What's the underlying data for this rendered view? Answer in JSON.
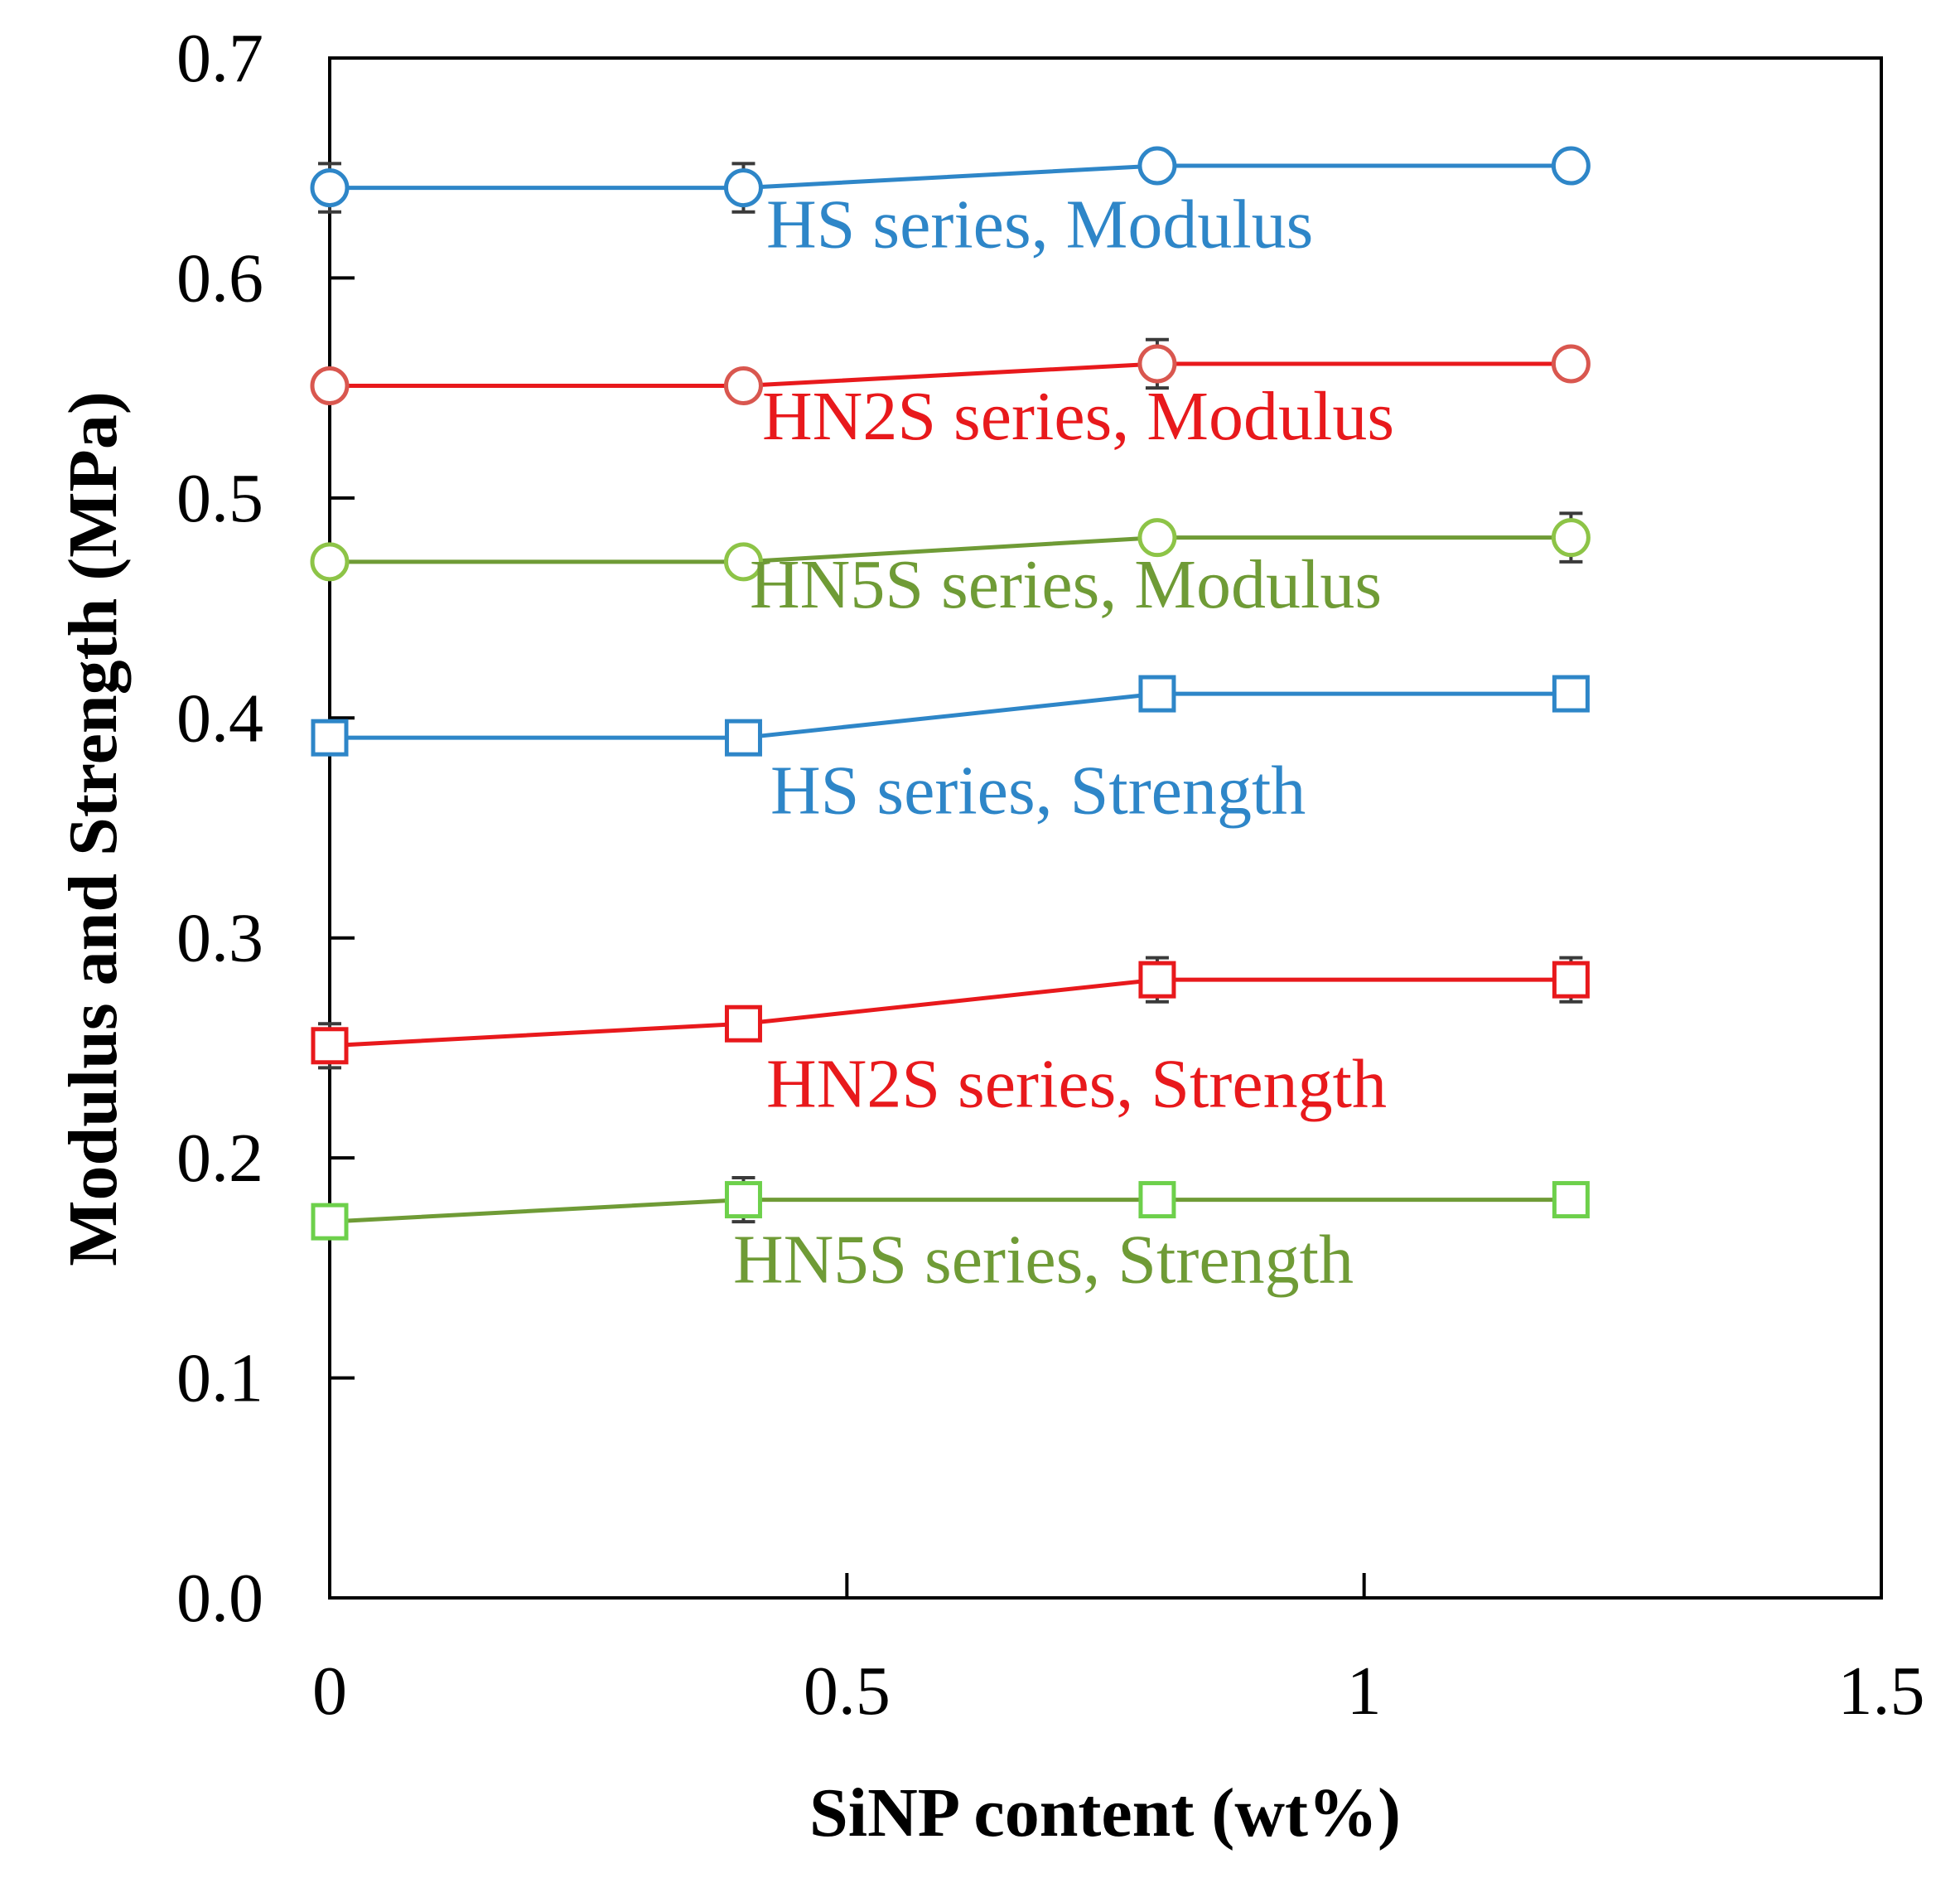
{
  "chart_data": {
    "type": "line",
    "xlabel": "SiNP content (wt%)",
    "ylabel": "Modulus and Strength (MPa)",
    "xlim": [
      0,
      1.5
    ],
    "ylim": [
      0,
      0.7
    ],
    "x_ticks": [
      "0",
      "0.5",
      "1",
      "1.5"
    ],
    "y_ticks": [
      "0.0",
      "0.1",
      "0.2",
      "0.3",
      "0.4",
      "0.5",
      "0.6",
      "0.7"
    ],
    "x_tick_values": [
      0,
      0.5,
      1,
      1.5
    ],
    "y_tick_values": [
      0,
      0.1,
      0.2,
      0.3,
      0.4,
      0.5,
      0.6,
      0.7
    ],
    "grid": false,
    "series": [
      {
        "name": "HS series, Modulus",
        "label": "HS series, Modulus",
        "x": [
          0,
          0.4,
          0.8,
          1.2
        ],
        "values": [
          0.641,
          0.641,
          0.651,
          0.651
        ],
        "errors": [
          0.011,
          0.011,
          0.0,
          0.0
        ],
        "line_color": "#2e86c8",
        "marker_color": "#2e86c8",
        "label_color": "#2e86c8",
        "marker": "circle"
      },
      {
        "name": "HN2S series, Modulus",
        "label": "HN2S series, Modulus",
        "x": [
          0,
          0.4,
          0.8,
          1.2
        ],
        "values": [
          0.551,
          0.551,
          0.561,
          0.561
        ],
        "errors": [
          0.0,
          0.0,
          0.011,
          0.0
        ],
        "line_color": "#e8191c",
        "marker_color": "#d9574f",
        "label_color": "#e8191c",
        "marker": "circle"
      },
      {
        "name": "HN5S series, Modulus",
        "label": "HN5S series, Modulus",
        "x": [
          0,
          0.4,
          0.8,
          1.2
        ],
        "values": [
          0.471,
          0.471,
          0.482,
          0.482
        ],
        "errors": [
          0.0,
          0.0,
          0.0,
          0.011
        ],
        "line_color": "#6f9b36",
        "marker_color": "#8dc447",
        "label_color": "#6f9b36",
        "marker": "circle"
      },
      {
        "name": "HS series, Strength",
        "label": "HS series, Strength",
        "x": [
          0,
          0.4,
          0.8,
          1.2
        ],
        "values": [
          0.391,
          0.391,
          0.411,
          0.411
        ],
        "errors": [
          0.0,
          0.0,
          0.0,
          0.0
        ],
        "line_color": "#2e86c8",
        "marker_color": "#2e86c8",
        "label_color": "#2e86c8",
        "marker": "square"
      },
      {
        "name": "HN2S series, Strength",
        "label": "HN2S series, Strength",
        "x": [
          0,
          0.4,
          0.8,
          1.2
        ],
        "values": [
          0.251,
          0.261,
          0.281,
          0.281
        ],
        "errors": [
          0.01,
          0.0,
          0.01,
          0.01
        ],
        "line_color": "#e8191c",
        "marker_color": "#e8191c",
        "label_color": "#e8191c",
        "marker": "square"
      },
      {
        "name": "HN5S series, Strength",
        "label": "HN5S series, Strength",
        "x": [
          0,
          0.4,
          0.8,
          1.2
        ],
        "values": [
          0.171,
          0.181,
          0.181,
          0.181
        ],
        "errors": [
          0.0,
          0.01,
          0.0,
          0.0
        ],
        "line_color": "#6f9b36",
        "marker_color": "#6dd04b",
        "label_color": "#6f9b36",
        "marker": "square"
      }
    ]
  }
}
